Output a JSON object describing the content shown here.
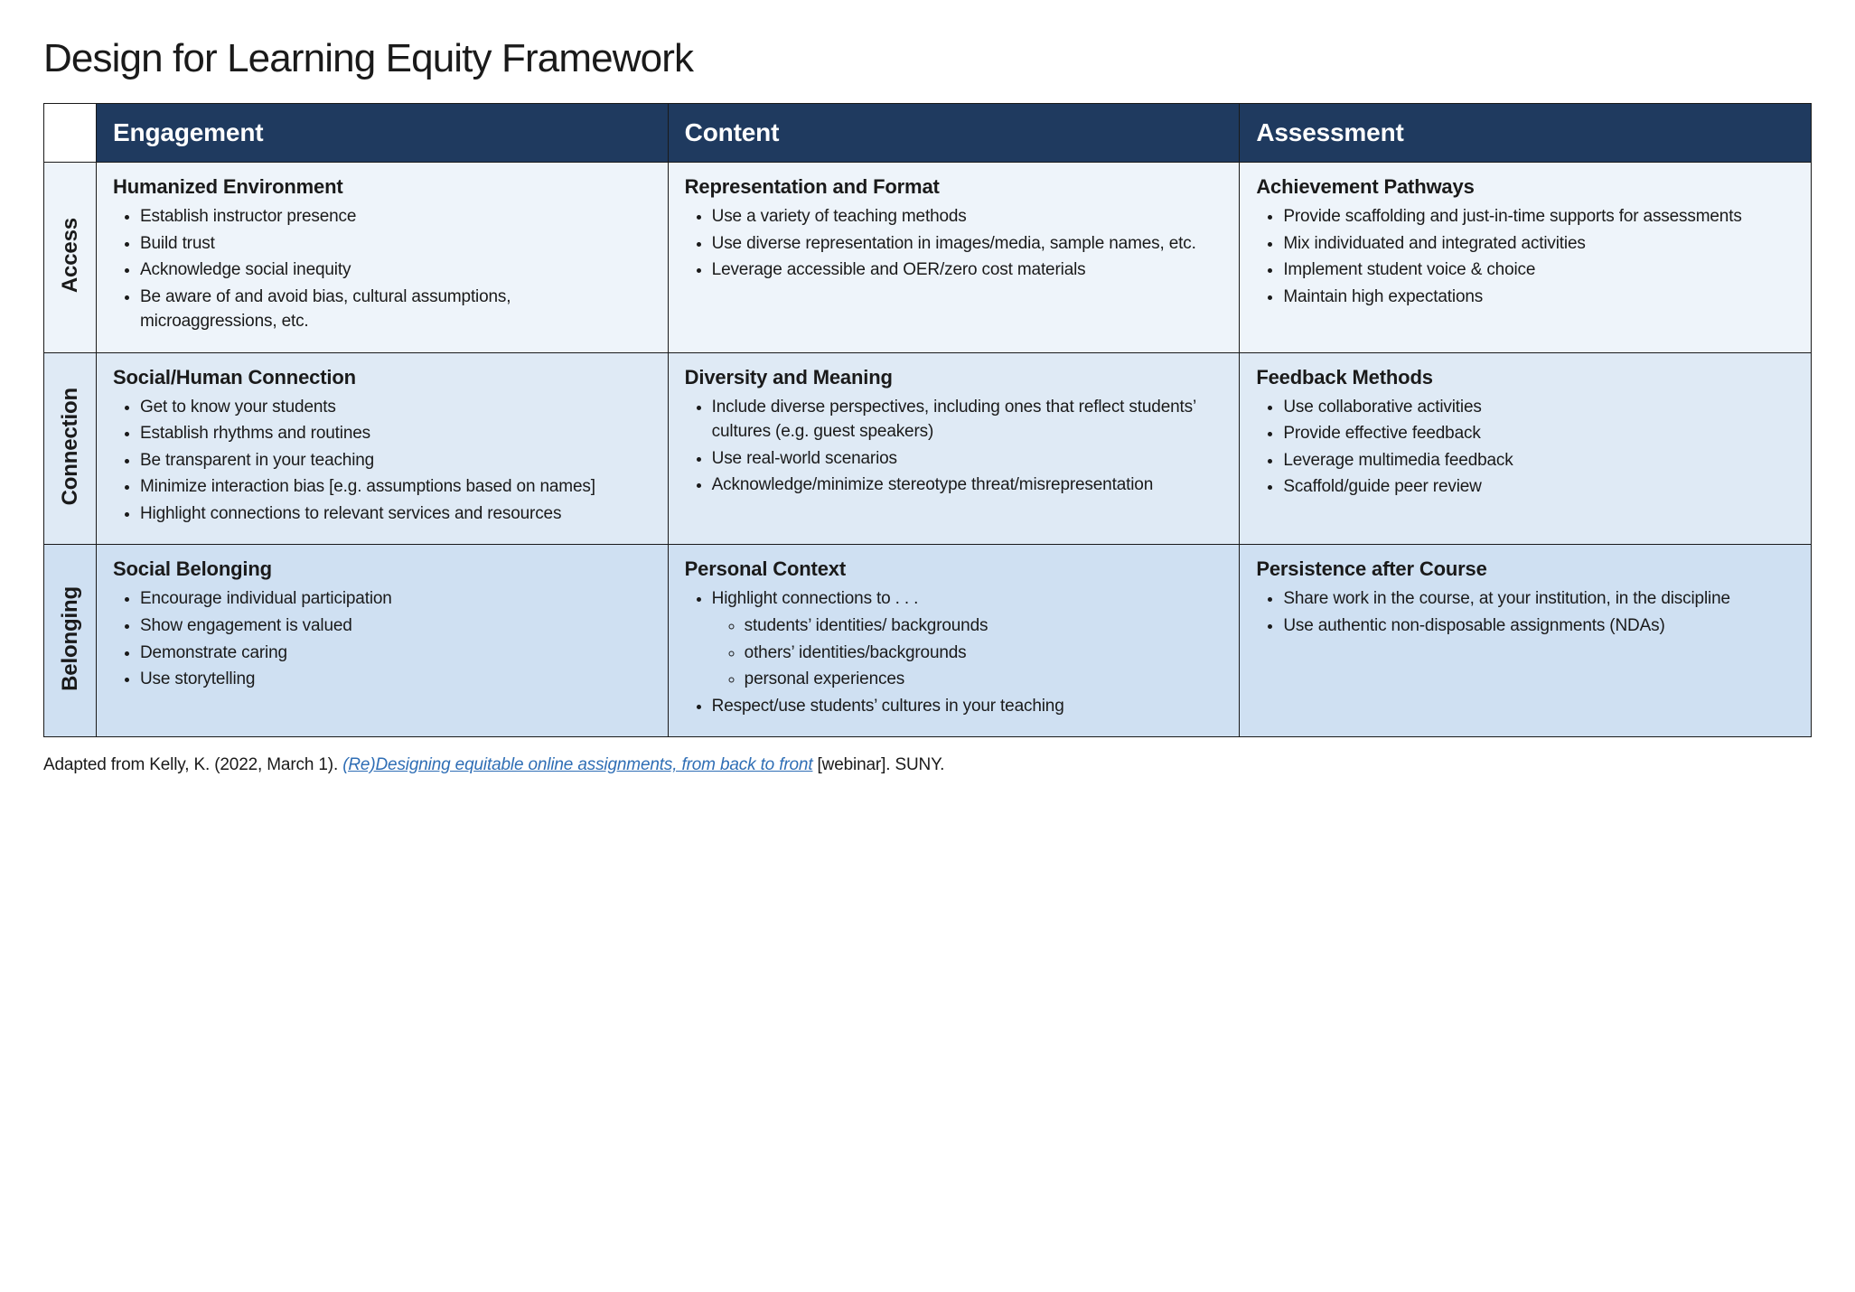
{
  "title": "Design for Learning Equity Framework",
  "colors": {
    "header_bg": "#1f3a5f",
    "row1_bg": "#eef4fa",
    "row1_head_bg": "#eef4fa",
    "row2_bg": "#dfeaf5",
    "row2_head_bg": "#dfeaf5",
    "row3_bg": "#cfe0f2",
    "row3_head_bg": "#cfe0f2",
    "corner_bg": "#ffffff",
    "text": "#1a1a1a",
    "link": "#2f6eb5"
  },
  "columns": [
    "Engagement",
    "Content",
    "Assessment"
  ],
  "rows": [
    {
      "label": "Access",
      "cells": [
        {
          "heading": "Humanized Environment",
          "items": [
            "Establish instructor presence",
            "Build trust",
            "Acknowledge social inequity",
            "Be aware of and avoid bias, cultural assumptions, microaggressions, etc."
          ]
        },
        {
          "heading": "Representation and Format",
          "items": [
            "Use a variety of teaching methods",
            "Use diverse representation in images/media, sample names, etc.",
            "Leverage accessible and OER/zero cost materials"
          ]
        },
        {
          "heading": "Achievement Pathways",
          "items": [
            "Provide scaffolding and just-in-time supports for assessments",
            "Mix individuated and integrated activities",
            "Implement student voice & choice",
            "Maintain high expectations"
          ]
        }
      ]
    },
    {
      "label": "Connection",
      "cells": [
        {
          "heading": "Social/Human Connection",
          "items": [
            "Get to know your students",
            "Establish rhythms and routines",
            "Be transparent in your teaching",
            "Minimize interaction bias [e.g. assumptions based on names]",
            "Highlight connections to relevant services and resources"
          ]
        },
        {
          "heading": "Diversity and Meaning",
          "items": [
            "Include diverse perspectives, including ones that reflect students’ cultures (e.g. guest speakers)",
            "Use real-world scenarios",
            "Acknowledge/minimize stereotype threat/misrepresentation"
          ]
        },
        {
          "heading": "Feedback Methods",
          "items": [
            "Use collaborative activities",
            "Provide effective feedback",
            "Leverage multimedia feedback",
            "Scaffold/guide peer review"
          ]
        }
      ]
    },
    {
      "label": "Belonging",
      "cells": [
        {
          "heading": "Social Belonging",
          "items": [
            "Encourage individual participation",
            "Show engagement is valued",
            "Demonstrate caring",
            "Use storytelling"
          ]
        },
        {
          "heading": "Personal Context",
          "items": [
            {
              "text": "Highlight connections to . . .",
              "sub": [
                "students’ identities/ backgrounds",
                "others’ identities/backgrounds",
                "personal experiences"
              ]
            },
            "Respect/use students’ cultures in your teaching"
          ]
        },
        {
          "heading": "Persistence after Course",
          "items": [
            "Share work in the course, at your institution, in the discipline",
            "Use authentic non-disposable assignments (NDAs)"
          ]
        }
      ]
    }
  ],
  "citation": {
    "prefix": "Adapted from Kelly, K. (2022, March 1). ",
    "link_text": "(Re)Designing equitable online assignments, from back to front",
    "suffix": " [webinar]. SUNY."
  }
}
